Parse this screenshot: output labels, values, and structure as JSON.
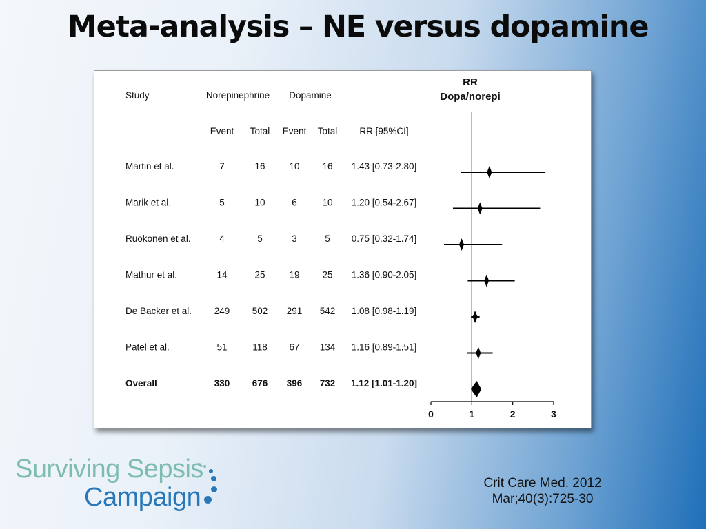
{
  "title": "Meta-analysis – NE versus dopamine",
  "citation": {
    "line1": "Crit Care Med. 2012",
    "line2": "Mar;40(3):725-30"
  },
  "logo": {
    "line1": "Surviving Sepsis",
    "line2": "Campaign"
  },
  "colors": {
    "logo_teal": "#7dbdb0",
    "logo_blue": "#2b78b8"
  },
  "chart_data": {
    "type": "forest",
    "plot_title_line1": "RR",
    "plot_title_line2": "Dopa/norepi",
    "group_headers": {
      "study": "Study",
      "ne": "Norepinephrine",
      "dopa": "Dopamine"
    },
    "columns": {
      "event": "Event",
      "total": "Total",
      "rr": "RR [95%CI]"
    },
    "xlim": [
      0,
      3
    ],
    "x_ticks": [
      0,
      1,
      2,
      3
    ],
    "null_line": 1,
    "rows": [
      {
        "study": "Martin et al.",
        "ne_event": "7",
        "ne_total": "16",
        "dopa_event": "10",
        "dopa_total": "16",
        "rr_text": "1.43 [0.73-2.80]",
        "rr": 1.43,
        "lo": 0.73,
        "hi": 2.8,
        "bold": false
      },
      {
        "study": "Marik et al.",
        "ne_event": "5",
        "ne_total": "10",
        "dopa_event": "6",
        "dopa_total": "10",
        "rr_text": "1.20 [0.54-2.67]",
        "rr": 1.2,
        "lo": 0.54,
        "hi": 2.67,
        "bold": false
      },
      {
        "study": "Ruokonen et al.",
        "ne_event": "4",
        "ne_total": "5",
        "dopa_event": "3",
        "dopa_total": "5",
        "rr_text": "0.75 [0.32-1.74]",
        "rr": 0.75,
        "lo": 0.32,
        "hi": 1.74,
        "bold": false
      },
      {
        "study": "Mathur et al.",
        "ne_event": "14",
        "ne_total": "25",
        "dopa_event": "19",
        "dopa_total": "25",
        "rr_text": "1.36 [0.90-2.05]",
        "rr": 1.36,
        "lo": 0.9,
        "hi": 2.05,
        "bold": false
      },
      {
        "study": "De Backer et al.",
        "ne_event": "249",
        "ne_total": "502",
        "dopa_event": "291",
        "dopa_total": "542",
        "rr_text": "1.08 [0.98-1.19]",
        "rr": 1.08,
        "lo": 0.98,
        "hi": 1.19,
        "bold": false
      },
      {
        "study": "Patel et al.",
        "ne_event": "51",
        "ne_total": "118",
        "dopa_event": "67",
        "dopa_total": "134",
        "rr_text": "1.16 [0.89-1.51]",
        "rr": 1.16,
        "lo": 0.89,
        "hi": 1.51,
        "bold": false
      },
      {
        "study": "Overall",
        "ne_event": "330",
        "ne_total": "676",
        "dopa_event": "396",
        "dopa_total": "732",
        "rr_text": "1.12 [1.01-1.20]",
        "rr": 1.12,
        "lo": 1.01,
        "hi": 1.2,
        "bold": true
      }
    ]
  }
}
